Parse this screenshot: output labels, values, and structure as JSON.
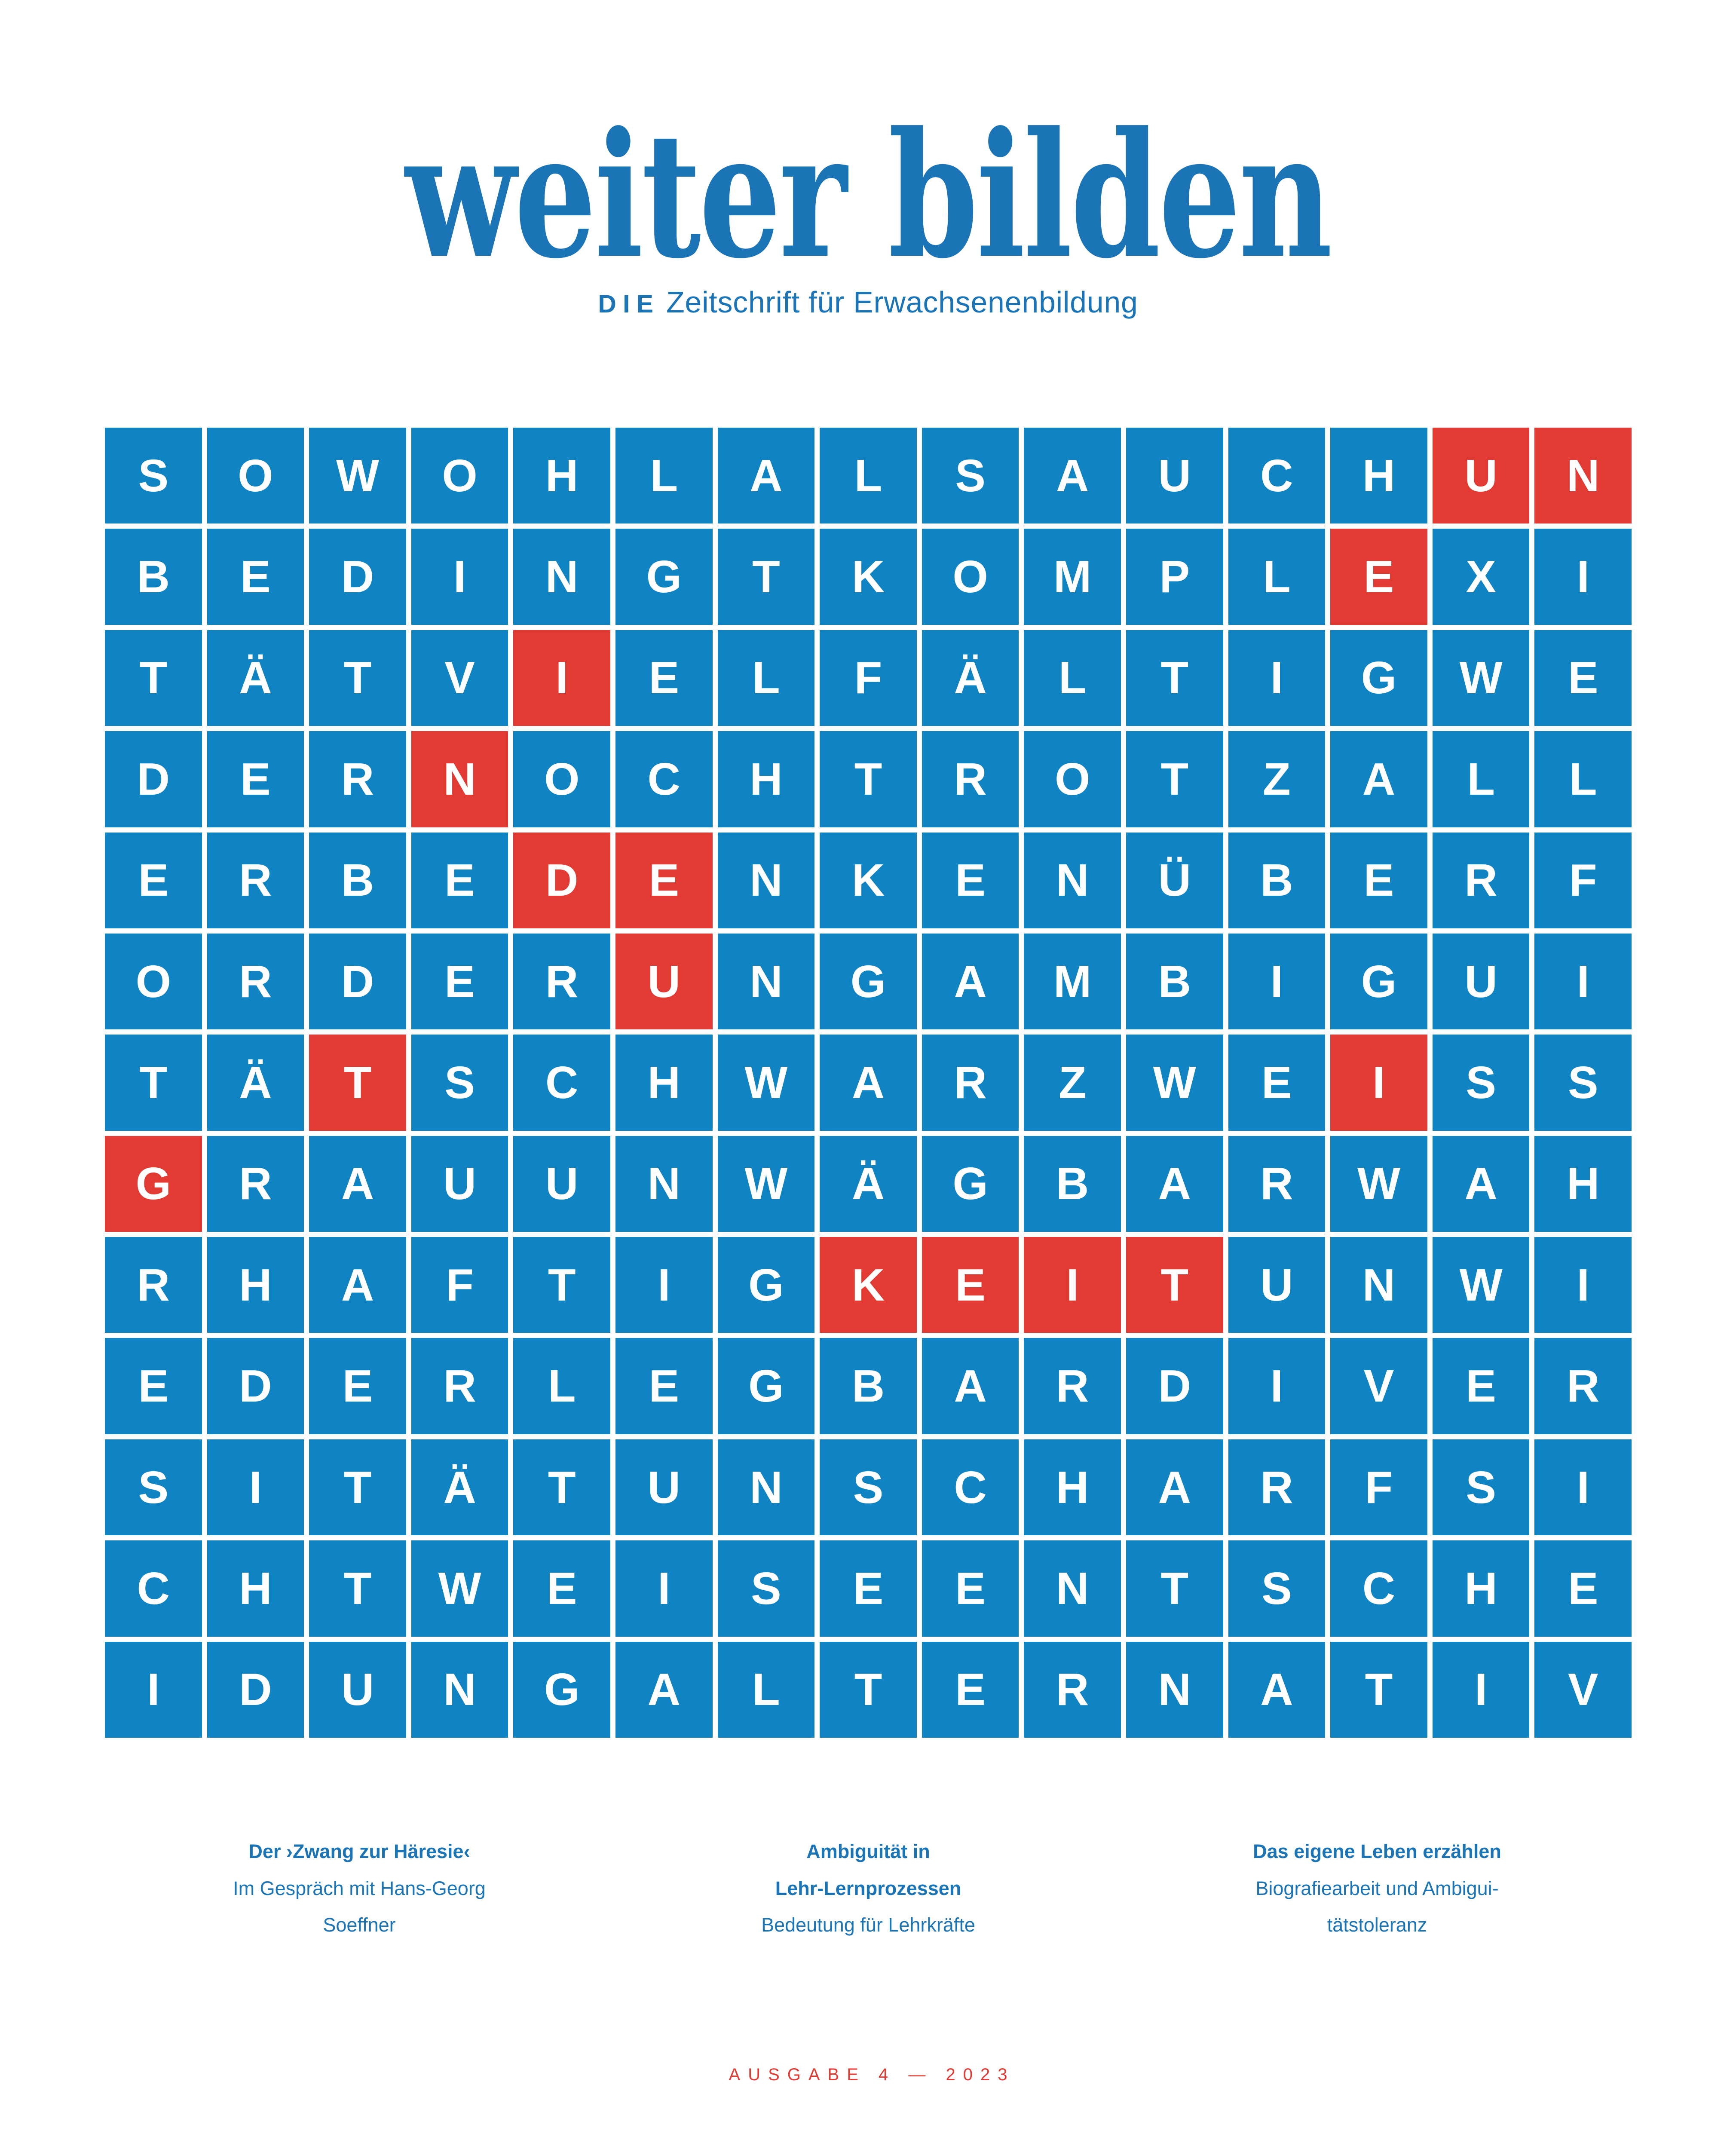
{
  "masthead": {
    "title": "weiter bilden",
    "subtitle_prefix": "DIE",
    "subtitle": "Zeitschrift für Erwachsenenbildung"
  },
  "puzzle": {
    "columns": 15,
    "rows": [
      "SOWOHLALSAUCHUN",
      "BEDINGTKOMPLEXI",
      "TÄTVIELFÄLTIGWE",
      "DERNOCHTROTZALL",
      "ERBEDENKENÜBERF",
      "ORDERUNGAMBIGUI",
      "TÄTSCHWARZWEISS",
      "GRAUUNWÄGBARWAH",
      "RHAFTIGKEITUNWI",
      "EDERLEGBARDIVER",
      "SITÄTUNSCHARFSI",
      "CHTWEISEENTSCHE",
      "IDUNGALTERNATIV"
    ],
    "red_cells": [
      [
        1,
        14
      ],
      [
        1,
        15
      ],
      [
        2,
        13
      ],
      [
        3,
        5
      ],
      [
        4,
        4
      ],
      [
        5,
        5
      ],
      [
        5,
        6
      ],
      [
        6,
        6
      ],
      [
        7,
        3
      ],
      [
        7,
        13
      ],
      [
        8,
        1
      ],
      [
        9,
        8
      ],
      [
        9,
        9
      ],
      [
        9,
        10
      ],
      [
        9,
        11
      ]
    ],
    "highlighted_word": "UNEINDEUTIGKEIT"
  },
  "teasers": [
    {
      "bold_lines": [
        "Der ›Zwang zur Häresie‹"
      ],
      "regular_lines": [
        "Im Gespräch mit Hans-Georg",
        "Soeffner"
      ]
    },
    {
      "bold_lines": [
        "Ambiguität in",
        "Lehr-Lernprozessen"
      ],
      "regular_lines": [
        "Bedeutung für Lehrkräfte"
      ]
    },
    {
      "bold_lines": [
        "Das eigene Leben erzählen"
      ],
      "regular_lines": [
        "Biografiearbeit und Ambigui-",
        "tätstoleranz"
      ]
    }
  ],
  "footer": {
    "issue_line": "AUSGABE 4 — 2023"
  },
  "colors": {
    "brand_blue": "#1b74b5",
    "cell_blue": "#1083c3",
    "highlight_red": "#e23b33",
    "background": "#ffffff"
  }
}
